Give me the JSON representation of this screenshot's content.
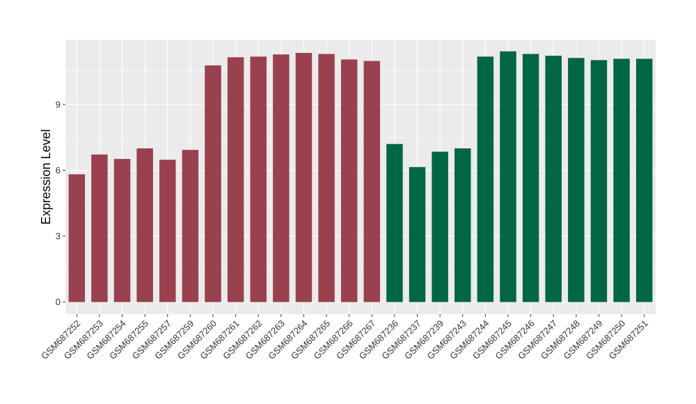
{
  "chart_data": {
    "type": "bar",
    "title": "",
    "xlabel": "",
    "ylabel": "Expression Level",
    "ylim": [
      -0.55,
      11.95
    ],
    "yticks": [
      0,
      3,
      6,
      9
    ],
    "ytick_labels": [
      "0",
      "3",
      "6",
      "9"
    ],
    "grid": true,
    "legend": "none",
    "colors": {
      "group1": "#99414f",
      "group2": "#006646",
      "panel": "#ebebeb",
      "grid": "#ffffff"
    },
    "categories": [
      "GSM687252",
      "GSM687253",
      "GSM687254",
      "GSM687255",
      "GSM687257",
      "GSM687259",
      "GSM687260",
      "GSM687261",
      "GSM687262",
      "GSM687263",
      "GSM687264",
      "GSM687265",
      "GSM687266",
      "GSM687267",
      "GSM687236",
      "GSM687237",
      "GSM687239",
      "GSM687243",
      "GSM687244",
      "GSM687245",
      "GSM687246",
      "GSM687247",
      "GSM687248",
      "GSM687249",
      "GSM687250",
      "GSM687251"
    ],
    "values": [
      5.82,
      6.72,
      6.52,
      7.0,
      6.48,
      6.93,
      10.78,
      11.15,
      11.18,
      11.28,
      11.35,
      11.3,
      11.05,
      10.98,
      7.2,
      6.15,
      6.85,
      7.0,
      11.18,
      11.42,
      11.3,
      11.22,
      11.12,
      11.02,
      11.08,
      11.08
    ],
    "group": [
      1,
      1,
      1,
      1,
      1,
      1,
      1,
      1,
      1,
      1,
      1,
      1,
      1,
      1,
      2,
      2,
      2,
      2,
      2,
      2,
      2,
      2,
      2,
      2,
      2,
      2
    ]
  }
}
